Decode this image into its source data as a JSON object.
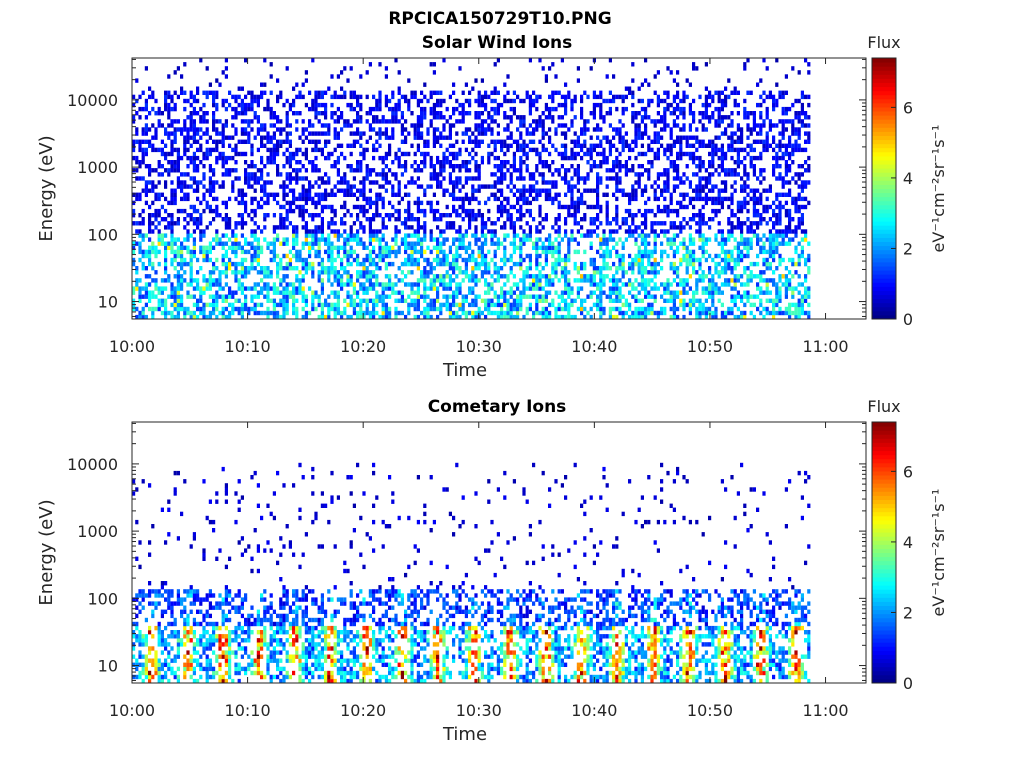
{
  "figure_title": "RPCICA150729T10.PNG",
  "chart_data": [
    {
      "type": "heatmap",
      "title": "Solar Wind Ions",
      "xlabel": "Time",
      "ylabel": "Energy (eV)",
      "x_ticks": [
        "10:00",
        "10:10",
        "10:20",
        "10:30",
        "10:40",
        "10:50",
        "11:00"
      ],
      "x_range_minutes": [
        0,
        63.5
      ],
      "data_end_minute": 58.7,
      "y_ticks": [
        "10",
        "100",
        "1000",
        "10000"
      ],
      "y_scale": "log",
      "y_range": [
        5.5,
        42000
      ],
      "colorbar": {
        "label": "Flux",
        "units": "eV⁻¹cm⁻²sr⁻¹s⁻¹",
        "ticks": [
          "0",
          "2",
          "4",
          "6"
        ],
        "range": [
          0,
          7.4
        ],
        "colormap": "jet"
      },
      "pattern": "broadband"
    },
    {
      "type": "heatmap",
      "title": "Cometary Ions",
      "xlabel": "Time",
      "ylabel": "Energy (eV)",
      "x_ticks": [
        "10:00",
        "10:10",
        "10:20",
        "10:30",
        "10:40",
        "10:50",
        "11:00"
      ],
      "x_range_minutes": [
        0,
        63.5
      ],
      "data_end_minute": 58.7,
      "y_ticks": [
        "10",
        "100",
        "1000",
        "10000"
      ],
      "y_scale": "log",
      "y_range": [
        5.5,
        42000
      ],
      "colorbar": {
        "label": "Flux",
        "units": "eV⁻¹cm⁻²sr⁻¹s⁻¹",
        "ticks": [
          "0",
          "2",
          "4",
          "6"
        ],
        "range": [
          0,
          7.4
        ],
        "colormap": "jet"
      },
      "pattern": "low-energy"
    }
  ]
}
